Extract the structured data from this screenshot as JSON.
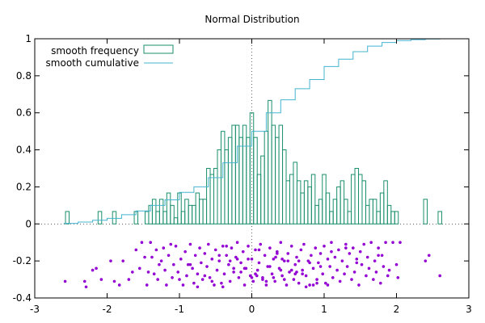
{
  "chart_data": {
    "type": "bar",
    "title": "Normal Distribution",
    "xlim": [
      -3,
      3
    ],
    "ylim": [
      -0.4,
      1
    ],
    "xticks": [
      -3,
      -2,
      -1,
      0,
      1,
      2,
      3
    ],
    "yticks": [
      -0.4,
      -0.2,
      0,
      0.2,
      0.4,
      0.6,
      0.8,
      1
    ],
    "ytick_labels": [
      "-0.4",
      "-0.2",
      "0",
      "0.2",
      "0.4",
      "0.6",
      "0.8",
      "1"
    ],
    "xtick_labels": [
      "-3",
      "-2",
      "-1",
      "0",
      "1",
      "2",
      "3"
    ],
    "grid": false,
    "zero_axes": "dotted",
    "legend_position": "top-left",
    "colors": {
      "frequency": "#1a8f6c",
      "cumulative": "#44b4d0",
      "points": "#9400d3"
    },
    "series": [
      {
        "name": "smooth frequency",
        "style": "histogram-steps",
        "bin_width": 0.05,
        "bins": [
          [
            -2.575,
            0.067
          ],
          [
            -2.525,
            0.0
          ],
          [
            -2.475,
            0.0
          ],
          [
            -2.425,
            0.033
          ],
          [
            -2.375,
            0.0
          ],
          [
            -2.325,
            0.033
          ],
          [
            -2.275,
            0.033
          ],
          [
            -2.225,
            0.067
          ],
          [
            -2.175,
            0.0
          ],
          [
            -2.125,
            0.0
          ],
          [
            -2.075,
            0.033
          ],
          [
            -2.025,
            0.0
          ],
          [
            -1.975,
            0.033
          ],
          [
            -1.925,
            0.0
          ],
          [
            -1.875,
            0.067
          ],
          [
            -1.825,
            0.0
          ],
          [
            -1.775,
            0.033
          ],
          [
            -1.725,
            0.067
          ],
          [
            -1.675,
            0.033
          ],
          [
            -1.625,
            0.067
          ],
          [
            -1.575,
            0.133
          ],
          [
            -1.525,
            0.1
          ],
          [
            -1.475,
            0.067
          ],
          [
            -1.425,
            0.167
          ],
          [
            -1.375,
            0.0
          ],
          [
            -1.325,
            0.133
          ],
          [
            -1.275,
            0.033
          ],
          [
            -1.225,
            0.167
          ],
          [
            -1.175,
            0.133
          ],
          [
            -1.125,
            0.067
          ],
          [
            -1.075,
            0.133
          ],
          [
            -1.025,
            0.0
          ],
          [
            -0.975,
            0.1
          ],
          [
            -0.925,
            0.2
          ],
          [
            -0.875,
            0.2
          ],
          [
            -0.825,
            0.1
          ],
          [
            -0.775,
            0.133
          ],
          [
            -0.725,
            0.167
          ],
          [
            -0.675,
            0.133
          ],
          [
            -0.625,
            0.2
          ],
          [
            -0.575,
            0.167
          ],
          [
            -0.525,
            0.067
          ],
          [
            -0.475,
            0.2
          ],
          [
            -0.425,
            0.233
          ],
          [
            -0.375,
            0.2
          ],
          [
            -0.325,
            0.167
          ],
          [
            -0.275,
            0.2
          ],
          [
            -0.225,
            0.167
          ],
          [
            -0.175,
            0.133
          ],
          [
            -0.125,
            0.133
          ],
          [
            -0.075,
            0.1
          ],
          [
            -0.025,
            0.2
          ],
          [
            0.025,
            0.167
          ],
          [
            0.075,
            0.2
          ],
          [
            0.125,
            0.2
          ],
          [
            0.175,
            0.133
          ],
          [
            0.225,
            0.233
          ],
          [
            0.275,
            0.2
          ],
          [
            0.325,
            0.167
          ],
          [
            0.375,
            0.233
          ],
          [
            0.425,
            0.133
          ],
          [
            0.475,
            0.133
          ],
          [
            0.525,
            0.1
          ],
          [
            0.575,
            0.133
          ],
          [
            0.625,
            0.067
          ],
          [
            0.675,
            0.2
          ],
          [
            0.725,
            0.1
          ],
          [
            0.775,
            0.133
          ],
          [
            0.825,
            0.1
          ],
          [
            0.875,
            0.067
          ],
          [
            0.925,
            0.167
          ],
          [
            0.975,
            0.1
          ],
          [
            1.025,
            0.067
          ],
          [
            1.075,
            0.133
          ],
          [
            1.125,
            0.1
          ],
          [
            1.175,
            0.067
          ],
          [
            1.225,
            0.033
          ],
          [
            1.275,
            0.133
          ],
          [
            1.325,
            0.067
          ],
          [
            1.375,
            0.1
          ],
          [
            1.425,
            0.067
          ],
          [
            1.475,
            0.033
          ],
          [
            1.525,
            0.067
          ],
          [
            1.575,
            0.0
          ],
          [
            1.625,
            0.067
          ],
          [
            1.675,
            0.033
          ],
          [
            1.725,
            0.033
          ],
          [
            1.775,
            0.067
          ],
          [
            1.825,
            0.0
          ],
          [
            1.875,
            0.033
          ],
          [
            1.925,
            0.0
          ],
          [
            1.975,
            0.033
          ],
          [
            2.025,
            0.0
          ],
          [
            2.075,
            0.0
          ],
          [
            2.125,
            0.0
          ],
          [
            2.175,
            0.0
          ],
          [
            2.225,
            0.0
          ],
          [
            2.275,
            0.0
          ],
          [
            2.325,
            0.0
          ],
          [
            2.375,
            0.033
          ],
          [
            2.425,
            0.0
          ],
          [
            2.475,
            0.0
          ],
          [
            2.525,
            0.0
          ],
          [
            2.575,
            0.033
          ]
        ],
        "bars": [
          [
            -2.55,
            0.067
          ],
          [
            -2.1,
            0.067
          ],
          [
            -1.9,
            0.067
          ],
          [
            -1.6,
            0.067
          ],
          [
            -1.45,
            0.067
          ],
          [
            -1.4,
            0.1
          ],
          [
            -1.35,
            0.133
          ],
          [
            -1.3,
            0.067
          ],
          [
            -1.25,
            0.133
          ],
          [
            -1.2,
            0.067
          ],
          [
            -1.15,
            0.167
          ],
          [
            -1.1,
            0.1
          ],
          [
            -1.05,
            0.033
          ],
          [
            -1.0,
            0.167
          ],
          [
            -0.95,
            0.067
          ],
          [
            -0.9,
            0.133
          ],
          [
            -0.85,
            0.1
          ],
          [
            -0.8,
            0.1
          ],
          [
            -0.75,
            0.167
          ],
          [
            -0.7,
            0.133
          ],
          [
            -0.65,
            0.133
          ],
          [
            -0.6,
            0.3
          ],
          [
            -0.55,
            0.267
          ],
          [
            -0.5,
            0.3
          ],
          [
            -0.45,
            0.4
          ],
          [
            -0.4,
            0.5
          ],
          [
            -0.35,
            0.4
          ],
          [
            -0.3,
            0.467
          ],
          [
            -0.25,
            0.533
          ],
          [
            -0.2,
            0.533
          ],
          [
            -0.15,
            0.467
          ],
          [
            -0.1,
            0.533
          ],
          [
            -0.05,
            0.467
          ],
          [
            0.0,
            0.6
          ],
          [
            0.05,
            0.467
          ],
          [
            0.1,
            0.267
          ],
          [
            0.15,
            0.367
          ],
          [
            0.2,
            0.5
          ],
          [
            0.25,
            0.667
          ],
          [
            0.3,
            0.533
          ],
          [
            0.35,
            0.467
          ],
          [
            0.4,
            0.533
          ],
          [
            0.45,
            0.4
          ],
          [
            0.5,
            0.233
          ],
          [
            0.55,
            0.267
          ],
          [
            0.6,
            0.333
          ],
          [
            0.65,
            0.233
          ],
          [
            0.7,
            0.167
          ],
          [
            0.75,
            0.233
          ],
          [
            0.8,
            0.2
          ],
          [
            0.85,
            0.267
          ],
          [
            0.9,
            0.1
          ],
          [
            0.95,
            0.133
          ],
          [
            1.0,
            0.267
          ],
          [
            1.05,
            0.167
          ],
          [
            1.1,
            0.067
          ],
          [
            1.15,
            0.133
          ],
          [
            1.2,
            0.2
          ],
          [
            1.25,
            0.233
          ],
          [
            1.3,
            0.133
          ],
          [
            1.35,
            0.067
          ],
          [
            1.4,
            0.267
          ],
          [
            1.45,
            0.3
          ],
          [
            1.5,
            0.267
          ],
          [
            1.55,
            0.233
          ],
          [
            1.6,
            0.1
          ],
          [
            1.65,
            0.133
          ],
          [
            1.7,
            0.133
          ],
          [
            1.75,
            0.067
          ],
          [
            1.8,
            0.167
          ],
          [
            1.85,
            0.233
          ],
          [
            1.9,
            0.1
          ],
          [
            1.95,
            0.067
          ],
          [
            2.0,
            0.067
          ],
          [
            2.4,
            0.133
          ],
          [
            2.6,
            0.067
          ]
        ]
      },
      {
        "name": "smooth cumulative",
        "style": "line",
        "x": [
          -2.6,
          -2.4,
          -2.2,
          -2.0,
          -1.8,
          -1.6,
          -1.4,
          -1.2,
          -1.0,
          -0.8,
          -0.6,
          -0.4,
          -0.2,
          0.0,
          0.2,
          0.4,
          0.6,
          0.8,
          1.0,
          1.2,
          1.4,
          1.6,
          1.8,
          2.0,
          2.2,
          2.4,
          2.6
        ],
        "y": [
          0.003,
          0.01,
          0.02,
          0.03,
          0.05,
          0.07,
          0.1,
          0.13,
          0.17,
          0.2,
          0.25,
          0.33,
          0.42,
          0.5,
          0.6,
          0.67,
          0.73,
          0.78,
          0.85,
          0.89,
          0.93,
          0.96,
          0.98,
          0.99,
          0.995,
          0.999,
          1.0
        ]
      }
    ],
    "points": {
      "name": "",
      "style": "scatter",
      "x": [
        -2.58,
        -2.31,
        -2.29,
        -2.2,
        -2.15,
        -2.08,
        -1.95,
        -1.9,
        -1.83,
        -1.78,
        -1.7,
        -1.65,
        -1.6,
        -1.55,
        -1.52,
        -1.48,
        -1.45,
        -1.43,
        -1.4,
        -1.38,
        -1.35,
        -1.32,
        -1.3,
        -1.28,
        -1.25,
        -1.22,
        -1.2,
        -1.18,
        -1.15,
        -1.12,
        -1.1,
        -1.08,
        -1.05,
        -1.02,
        -1.0,
        -0.98,
        -0.95,
        -0.92,
        -0.9,
        -0.88,
        -0.85,
        -0.82,
        -0.8,
        -0.78,
        -0.75,
        -0.72,
        -0.7,
        -0.68,
        -0.65,
        -0.62,
        -0.6,
        -0.58,
        -0.55,
        -0.52,
        -0.5,
        -0.48,
        -0.45,
        -0.42,
        -0.4,
        -0.38,
        -0.35,
        -0.32,
        -0.3,
        -0.28,
        -0.25,
        -0.22,
        -0.2,
        -0.18,
        -0.15,
        -0.12,
        -0.1,
        -0.08,
        -0.05,
        -0.02,
        0.0,
        0.02,
        0.05,
        0.08,
        0.1,
        0.12,
        0.15,
        0.18,
        0.2,
        0.22,
        0.25,
        0.28,
        0.3,
        0.32,
        0.35,
        0.38,
        0.4,
        0.42,
        0.45,
        0.48,
        0.5,
        0.52,
        0.55,
        0.58,
        0.6,
        0.62,
        0.65,
        0.68,
        0.7,
        0.72,
        0.75,
        0.78,
        0.8,
        0.82,
        0.85,
        0.88,
        0.9,
        0.92,
        0.95,
        0.98,
        1.0,
        1.02,
        1.05,
        1.08,
        1.1,
        1.12,
        1.15,
        1.18,
        1.2,
        1.22,
        1.25,
        1.28,
        1.3,
        1.32,
        1.35,
        1.38,
        1.4,
        1.42,
        1.45,
        1.48,
        1.5,
        1.52,
        1.55,
        1.58,
        1.6,
        1.62,
        1.65,
        1.68,
        1.7,
        1.72,
        1.75,
        1.78,
        1.8,
        1.82,
        1.85,
        1.88,
        1.9,
        1.95,
        2.0,
        2.02,
        2.05,
        2.4,
        2.45,
        2.6,
        -0.3,
        -0.1,
        0.15,
        0.35,
        0.55,
        -0.55,
        -0.2,
        0.05,
        0.25,
        0.45,
        0.65,
        0.85,
        -0.45,
        -0.15,
        0.1,
        0.3,
        0.5,
        0.75,
        0.95,
        -0.65,
        -0.35,
        -0.05,
        0.2,
        0.4,
        0.6,
        0.8,
        1.1,
        -0.75,
        -0.25,
        0.0,
        0.33,
        0.62,
        0.9,
        1.3,
        -0.85,
        -0.4,
        0.07,
        0.42,
        0.7,
        1.05,
        1.45,
        1.75
      ],
      "y": [
        -0.31,
        -0.31,
        -0.34,
        -0.25,
        -0.24,
        -0.3,
        -0.2,
        -0.31,
        -0.33,
        -0.2,
        -0.3,
        -0.26,
        -0.14,
        -0.24,
        -0.1,
        -0.18,
        -0.33,
        -0.26,
        -0.1,
        -0.18,
        -0.27,
        -0.14,
        -0.3,
        -0.22,
        -0.2,
        -0.13,
        -0.25,
        -0.33,
        -0.17,
        -0.11,
        -0.29,
        -0.22,
        -0.12,
        -0.26,
        -0.3,
        -0.19,
        -0.33,
        -0.15,
        -0.28,
        -0.22,
        -0.11,
        -0.24,
        -0.32,
        -0.17,
        -0.27,
        -0.13,
        -0.21,
        -0.3,
        -0.16,
        -0.23,
        -0.11,
        -0.29,
        -0.19,
        -0.33,
        -0.14,
        -0.25,
        -0.2,
        -0.32,
        -0.12,
        -0.27,
        -0.17,
        -0.22,
        -0.31,
        -0.13,
        -0.26,
        -0.18,
        -0.1,
        -0.29,
        -0.21,
        -0.15,
        -0.33,
        -0.24,
        -0.12,
        -0.28,
        -0.19,
        -0.31,
        -0.14,
        -0.25,
        -0.21,
        -0.11,
        -0.29,
        -0.17,
        -0.33,
        -0.23,
        -0.13,
        -0.27,
        -0.19,
        -0.31,
        -0.15,
        -0.24,
        -0.1,
        -0.28,
        -0.2,
        -0.33,
        -0.16,
        -0.26,
        -0.12,
        -0.3,
        -0.22,
        -0.18,
        -0.32,
        -0.14,
        -0.25,
        -0.11,
        -0.28,
        -0.2,
        -0.33,
        -0.17,
        -0.24,
        -0.13,
        -0.3,
        -0.21,
        -0.16,
        -0.27,
        -0.12,
        -0.32,
        -0.19,
        -0.23,
        -0.1,
        -0.29,
        -0.18,
        -0.25,
        -0.14,
        -0.31,
        -0.2,
        -0.27,
        -0.11,
        -0.23,
        -0.16,
        -0.3,
        -0.13,
        -0.26,
        -0.19,
        -0.33,
        -0.15,
        -0.22,
        -0.11,
        -0.28,
        -0.18,
        -0.24,
        -0.1,
        -0.3,
        -0.2,
        -0.26,
        -0.13,
        -0.32,
        -0.17,
        -0.23,
        -0.1,
        -0.28,
        -0.25,
        -0.1,
        -0.22,
        -0.29,
        -0.1,
        -0.2,
        -0.17,
        -0.28,
        -0.2,
        -0.24,
        -0.3,
        -0.16,
        -0.25,
        -0.31,
        -0.19,
        -0.27,
        -0.23,
        -0.3,
        -0.2,
        -0.33,
        -0.17,
        -0.26,
        -0.14,
        -0.29,
        -0.2,
        -0.34,
        -0.23,
        -0.28,
        -0.12,
        -0.19,
        -0.31,
        -0.25,
        -0.27,
        -0.21,
        -0.15,
        -0.34,
        -0.24,
        -0.29,
        -0.18,
        -0.26,
        -0.32,
        -0.13,
        -0.22,
        -0.34,
        -0.28,
        -0.19,
        -0.27,
        -0.33,
        -0.21,
        -0.17
      ]
    }
  }
}
